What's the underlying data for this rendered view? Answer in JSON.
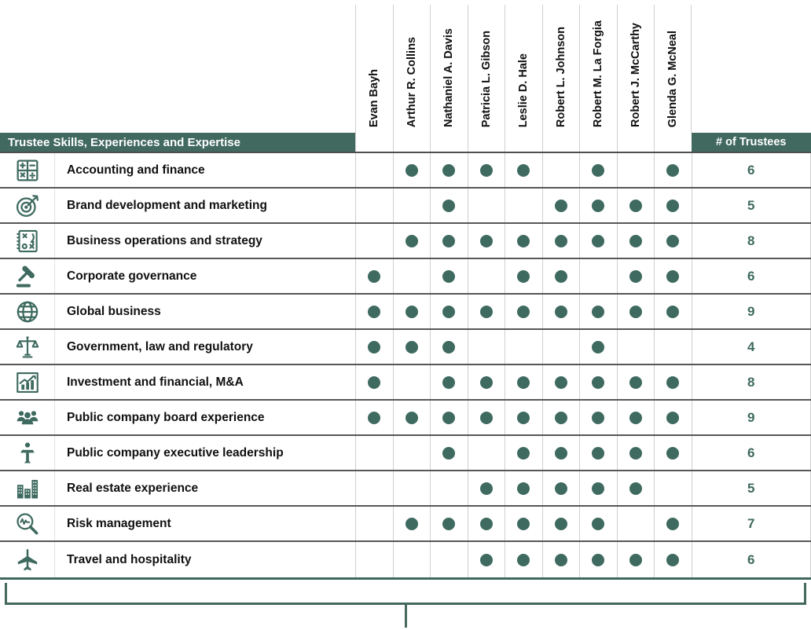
{
  "colors": {
    "accent_teal": "#3E6A5F",
    "header_bar_bg": "#41695F",
    "header_bar_text": "#FFFFFF",
    "row_separator": "#575757",
    "column_separator": "#CFCFCF",
    "count_text": "#3E6A5F"
  },
  "header": {
    "skills_label": "Trustee Skills, Experiences and Expertise",
    "count_label": "# of Trustees"
  },
  "trustees": [
    "Evan Bayh",
    "Arthur R. Collins",
    "Nathaniel A. Davis",
    "Patricia L. Gibson",
    "Leslie D. Hale",
    "Robert L. Johnson",
    "Robert M. La Forgia",
    "Robert J. McCarthy",
    "Glenda G. McNeal"
  ],
  "rows": [
    {
      "label": "Accounting and finance",
      "icon": "calculator-icon",
      "marks": [
        0,
        1,
        1,
        1,
        1,
        0,
        1,
        0,
        1
      ],
      "count": 6
    },
    {
      "label": "Brand development and marketing",
      "icon": "target-icon",
      "marks": [
        0,
        0,
        1,
        0,
        0,
        1,
        1,
        1,
        1
      ],
      "count": 5
    },
    {
      "label": "Business operations and strategy",
      "icon": "strategy-icon",
      "marks": [
        0,
        1,
        1,
        1,
        1,
        1,
        1,
        1,
        1
      ],
      "count": 8
    },
    {
      "label": "Corporate governance",
      "icon": "gavel-icon",
      "marks": [
        1,
        0,
        1,
        0,
        1,
        1,
        0,
        1,
        1
      ],
      "count": 6
    },
    {
      "label": "Global business",
      "icon": "globe-icon",
      "marks": [
        1,
        1,
        1,
        1,
        1,
        1,
        1,
        1,
        1
      ],
      "count": 9
    },
    {
      "label": "Government, law and regulatory",
      "icon": "scales-icon",
      "marks": [
        1,
        1,
        1,
        0,
        0,
        0,
        1,
        0,
        0
      ],
      "count": 4
    },
    {
      "label": "Investment and financial, M&A",
      "icon": "bar-chart-icon",
      "marks": [
        1,
        0,
        1,
        1,
        1,
        1,
        1,
        1,
        1
      ],
      "count": 8
    },
    {
      "label": "Public company board experience",
      "icon": "people-icon",
      "marks": [
        1,
        1,
        1,
        1,
        1,
        1,
        1,
        1,
        1
      ],
      "count": 9
    },
    {
      "label": "Public company executive leadership",
      "icon": "podium-icon",
      "marks": [
        0,
        0,
        1,
        0,
        1,
        1,
        1,
        1,
        1
      ],
      "count": 6
    },
    {
      "label": "Real estate experience",
      "icon": "buildings-icon",
      "marks": [
        0,
        0,
        0,
        1,
        1,
        1,
        1,
        1,
        0
      ],
      "count": 5
    },
    {
      "label": "Risk management",
      "icon": "magnifier-icon",
      "marks": [
        0,
        1,
        1,
        1,
        1,
        1,
        1,
        0,
        1
      ],
      "count": 7
    },
    {
      "label": "Travel and hospitality",
      "icon": "airplane-icon",
      "marks": [
        0,
        0,
        0,
        1,
        1,
        1,
        1,
        1,
        1
      ],
      "count": 6
    }
  ]
}
